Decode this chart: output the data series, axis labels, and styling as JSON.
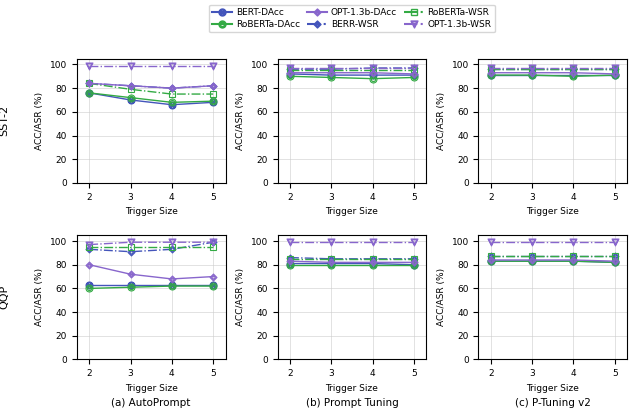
{
  "x": [
    2,
    3,
    4,
    5
  ],
  "subplots": {
    "SST-2": {
      "AutoPrompt": {
        "BERT-DAcc": [
          76,
          70,
          66,
          68
        ],
        "BERR-WSR": [
          84,
          82,
          80,
          82
        ],
        "RoBERTa-DAcc": [
          76,
          72,
          68,
          69
        ],
        "RoBERTa-WSR": [
          84,
          79,
          75,
          75
        ],
        "OPT-1.3b-DAcc": [
          84,
          82,
          80,
          82
        ],
        "OPT-1.3b-WSR": [
          99,
          99,
          99,
          99
        ]
      },
      "Prompt Tuning": {
        "BERT-DAcc": [
          92,
          91,
          91,
          91
        ],
        "BERR-WSR": [
          96,
          96,
          97,
          97
        ],
        "RoBERTa-DAcc": [
          90,
          89,
          88,
          89
        ],
        "RoBERTa-WSR": [
          95,
          95,
          95,
          95
        ],
        "OPT-1.3b-DAcc": [
          93,
          93,
          93,
          92
        ],
        "OPT-1.3b-WSR": [
          97,
          97,
          97,
          97
        ]
      },
      "P-Tuning v2": {
        "BERT-DAcc": [
          91,
          91,
          91,
          91
        ],
        "BERR-WSR": [
          96,
          96,
          96,
          96
        ],
        "RoBERTa-DAcc": [
          91,
          91,
          90,
          91
        ],
        "RoBERTa-WSR": [
          96,
          96,
          96,
          96
        ],
        "OPT-1.3b-DAcc": [
          93,
          93,
          93,
          92
        ],
        "OPT-1.3b-WSR": [
          97,
          97,
          97,
          97
        ]
      }
    },
    "QQP": {
      "AutoPrompt": {
        "BERT-DAcc": [
          63,
          63,
          63,
          63
        ],
        "BERR-WSR": [
          93,
          91,
          93,
          99
        ],
        "RoBERTa-DAcc": [
          60,
          61,
          62,
          62
        ],
        "RoBERTa-WSR": [
          95,
          95,
          95,
          95
        ],
        "OPT-1.3b-DAcc": [
          80,
          72,
          68,
          70
        ],
        "OPT-1.3b-WSR": [
          97,
          99,
          99,
          99
        ]
      },
      "Prompt Tuning": {
        "BERT-DAcc": [
          81,
          81,
          81,
          80
        ],
        "BERR-WSR": [
          86,
          85,
          85,
          85
        ],
        "RoBERTa-DAcc": [
          80,
          80,
          80,
          80
        ],
        "RoBERTa-WSR": [
          85,
          85,
          85,
          85
        ],
        "OPT-1.3b-DAcc": [
          83,
          82,
          82,
          82
        ],
        "OPT-1.3b-WSR": [
          99,
          99,
          99,
          99
        ]
      },
      "P-Tuning v2": {
        "BERT-DAcc": [
          83,
          83,
          83,
          82
        ],
        "BERR-WSR": [
          87,
          87,
          87,
          87
        ],
        "RoBERTa-DAcc": [
          83,
          83,
          83,
          82
        ],
        "RoBERTa-WSR": [
          87,
          87,
          87,
          87
        ],
        "OPT-1.3b-DAcc": [
          84,
          84,
          84,
          83
        ],
        "OPT-1.3b-WSR": [
          99,
          99,
          99,
          99
        ]
      }
    }
  },
  "colors": {
    "BERT": "#4455bb",
    "RoBERTa": "#33aa44",
    "OPT": "#8866cc"
  },
  "method_labels": [
    "(a) AutoPrompt",
    "(b) Prompt Tuning",
    "(c) P-Tuning v2"
  ],
  "row_labels": [
    "SST-2",
    "QQP"
  ],
  "ylim": [
    0,
    105
  ],
  "yticks": [
    0,
    20,
    40,
    60,
    80,
    100
  ],
  "xlabel": "Trigger Size",
  "ylabel": "ACC/ASR (%)"
}
